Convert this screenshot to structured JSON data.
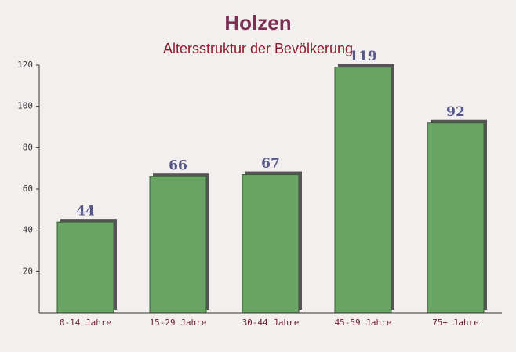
{
  "chart_data": {
    "type": "bar",
    "title": "Holzen",
    "subtitle": "Altersstruktur der Bevölkerung",
    "categories": [
      "0-14 Jahre",
      "15-29 Jahre",
      "30-44 Jahre",
      "45-59 Jahre",
      "75+ Jahre"
    ],
    "values": [
      44,
      66,
      67,
      119,
      92
    ],
    "color": "#6aa465",
    "ylim": [
      0,
      120
    ],
    "yticks": [
      20,
      40,
      60,
      80,
      100,
      120
    ]
  }
}
